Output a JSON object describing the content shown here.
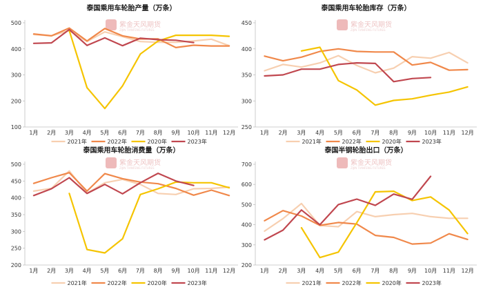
{
  "watermark": {
    "text": "紫金天风期货",
    "sub": "ZIJIN TIANFENG FUTURES"
  },
  "colors": {
    "2021年": "#f7cfb0",
    "2022年": "#f0884a",
    "2020年": "#f5c400",
    "2023年": "#c0474f"
  },
  "chart_data": [
    {
      "type": "line",
      "title": "泰国乘用车轮胎产量（万条）",
      "categories": [
        "1月",
        "2月",
        "3月",
        "4月",
        "5月",
        "6月",
        "7月",
        "8月",
        "9月",
        "10月",
        "11月",
        "12月"
      ],
      "ylim": [
        100,
        500
      ],
      "yticks": [
        100,
        200,
        300,
        400,
        500
      ],
      "series": [
        {
          "name": "2021年",
          "values": [
            455,
            450,
            470,
            428,
            465,
            447,
            428,
            425,
            425,
            430,
            437,
            412
          ]
        },
        {
          "name": "2022年",
          "values": [
            457,
            450,
            480,
            430,
            478,
            450,
            438,
            438,
            405,
            414,
            411,
            411
          ]
        },
        {
          "name": "2020年",
          "values": [
            null,
            null,
            470,
            251,
            171,
            258,
            380,
            430,
            452,
            452,
            452,
            448
          ]
        },
        {
          "name": "2023年",
          "values": [
            421,
            423,
            474,
            413,
            442,
            412,
            441,
            435,
            433,
            424,
            null,
            null
          ]
        }
      ]
    },
    {
      "type": "line",
      "title": "泰国乘用车轮胎库存（万条）",
      "categories": [
        "1月",
        "2月",
        "3月",
        "4月",
        "5月",
        "6月",
        "7月",
        "8月",
        "9月",
        "10月",
        "11月",
        "12月"
      ],
      "ylim": [
        250,
        450
      ],
      "yticks": [
        250,
        300,
        350,
        400,
        450
      ],
      "series": [
        {
          "name": "2021年",
          "values": [
            358,
            370,
            365,
            373,
            387,
            368,
            354,
            363,
            385,
            382,
            393,
            373
          ]
        },
        {
          "name": "2022年",
          "values": [
            386,
            377,
            384,
            395,
            400,
            395,
            394,
            394,
            369,
            374,
            359,
            360
          ]
        },
        {
          "name": "2020年",
          "values": [
            null,
            null,
            396,
            403,
            339,
            321,
            292,
            301,
            304,
            311,
            317,
            327
          ]
        },
        {
          "name": "2023年",
          "values": [
            348,
            350,
            361,
            361,
            370,
            373,
            372,
            337,
            343,
            345,
            null,
            null
          ]
        }
      ]
    },
    {
      "type": "line",
      "title": "泰国乘用车轮胎消费量（万条）",
      "categories": [
        "1月",
        "2月",
        "3月",
        "4月",
        "5月",
        "6月",
        "7月",
        "8月",
        "9月",
        "10月",
        "11月",
        "12月"
      ],
      "ylim": [
        200,
        500
      ],
      "yticks": [
        200,
        250,
        300,
        350,
        400,
        450,
        500
      ],
      "series": [
        {
          "name": "2021年",
          "values": [
            420,
            428,
            480,
            414,
            445,
            455,
            440,
            413,
            410,
            427,
            428,
            432
          ]
        },
        {
          "name": "2022年",
          "values": [
            443,
            460,
            475,
            420,
            472,
            457,
            447,
            442,
            428,
            408,
            423,
            407
          ]
        },
        {
          "name": "2020年",
          "values": [
            null,
            null,
            413,
            246,
            236,
            278,
            410,
            427,
            447,
            445,
            445,
            430
          ]
        },
        {
          "name": "2023年",
          "values": [
            407,
            427,
            460,
            413,
            440,
            412,
            445,
            473,
            450,
            437,
            null,
            null
          ]
        }
      ]
    },
    {
      "type": "line",
      "title": "泰国半钢轮胎出口（万条）",
      "categories": [
        "1月",
        "2月",
        "3月",
        "4月",
        "5月",
        "6月",
        "7月",
        "8月",
        "9月",
        "10月",
        "11月",
        "12月"
      ],
      "ylim": [
        200,
        700
      ],
      "yticks": [
        200,
        300,
        400,
        500,
        600,
        700
      ],
      "series": [
        {
          "name": "2021年",
          "values": [
            368,
            430,
            505,
            396,
            390,
            465,
            440,
            450,
            456,
            440,
            432,
            432
          ]
        },
        {
          "name": "2022年",
          "values": [
            420,
            470,
            443,
            397,
            411,
            403,
            347,
            337,
            304,
            309,
            355,
            327
          ]
        },
        {
          "name": "2020年",
          "values": [
            null,
            null,
            385,
            237,
            264,
            410,
            563,
            566,
            520,
            538,
            473,
            356
          ]
        },
        {
          "name": "2023年",
          "values": [
            325,
            373,
            473,
            400,
            500,
            527,
            496,
            552,
            526,
            640,
            null,
            null
          ]
        }
      ]
    }
  ]
}
